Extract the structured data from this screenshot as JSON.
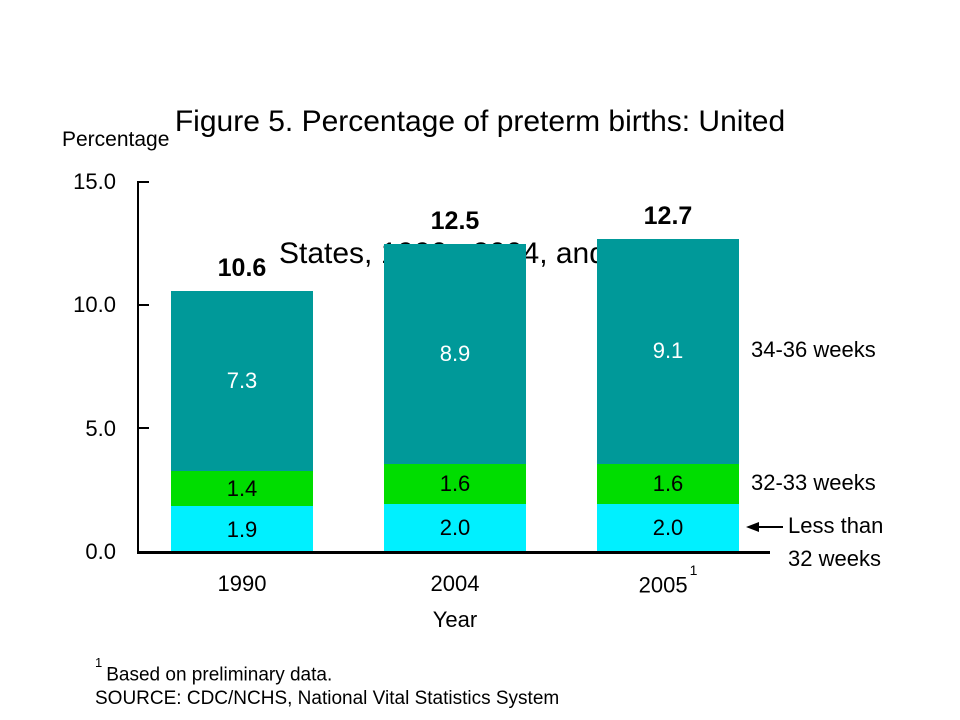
{
  "title": {
    "line1": "Figure 5. Percentage of preterm births: United",
    "line2": "States, 1990,  2004, and 2005"
  },
  "legend": {
    "s34_36": "34-36 weeks",
    "s32_33": "32-33 weeks",
    "less_line1": "Less than",
    "less_line2": "32 weeks",
    "arrow_icon": "left-arrow"
  },
  "footnote": {
    "sup": "1",
    "text": "Based on preliminary data."
  },
  "source": "SOURCE: CDC/NCHS, National Vital Statistics System",
  "colors": {
    "teal": "#009999",
    "green": "#00DD00",
    "cyan": "#00F0FF",
    "axis": "#000000",
    "label_on_teal": "#FFFFFF",
    "label_on_light": "#000000"
  },
  "chart_data": {
    "type": "bar",
    "subtype": "stacked",
    "title": "Figure 5. Percentage of preterm births: United States, 1990,  2004, and 2005",
    "xlabel": "Year",
    "ylabel": "Percentage",
    "categories": [
      "1990",
      "2004",
      "2005"
    ],
    "category_sups": [
      "",
      "",
      "1"
    ],
    "series": [
      {
        "name": "Less than 32 weeks",
        "color": "#00F0FF",
        "label_color": "#000000",
        "values": [
          1.9,
          2.0,
          2.0
        ],
        "labels": [
          "1.9",
          "2.0",
          "2.0"
        ]
      },
      {
        "name": "32-33 weeks",
        "color": "#00DD00",
        "label_color": "#000000",
        "values": [
          1.4,
          1.6,
          1.6
        ],
        "labels": [
          "1.4",
          "1.6",
          "1.6"
        ]
      },
      {
        "name": "34-36 weeks",
        "color": "#009999",
        "label_color": "#FFFFFF",
        "values": [
          7.3,
          8.9,
          9.1
        ],
        "labels": [
          "7.3",
          "8.9",
          "9.1"
        ]
      }
    ],
    "totals": [
      10.6,
      12.5,
      12.7
    ],
    "total_labels": [
      "10.6",
      "12.5",
      "12.7"
    ],
    "ylim": [
      0,
      15
    ],
    "ytick_values": [
      15.0,
      10.0,
      5.0,
      0.0
    ],
    "ytick_labels": [
      "15.0",
      "10.0",
      "5.0",
      "0.0"
    ],
    "grid": false,
    "legend_position": "right"
  }
}
